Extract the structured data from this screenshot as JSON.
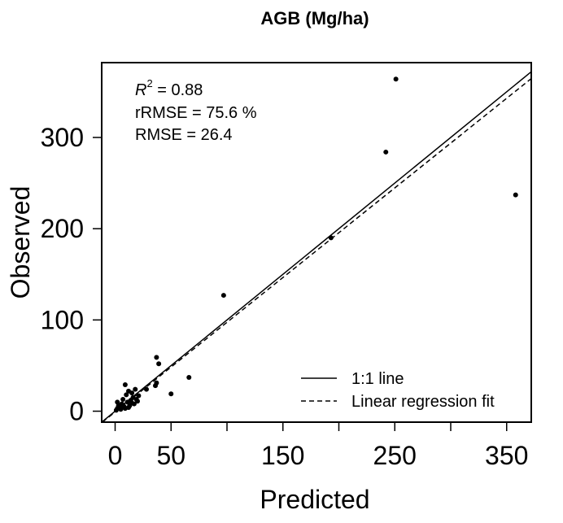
{
  "chart_data": {
    "type": "scatter",
    "title": "AGB (Mg/ha)",
    "xlabel": "Predicted",
    "ylabel": "Observed",
    "xlim": [
      -12,
      372
    ],
    "ylim": [
      -12,
      382
    ],
    "x_ticks": [
      0,
      50,
      100,
      150,
      200,
      250,
      300,
      350
    ],
    "x_tick_labels": [
      "0",
      "50",
      "",
      "150",
      "",
      "250",
      "",
      "350"
    ],
    "y_ticks": [
      0,
      100,
      200,
      300
    ],
    "y_tick_labels": [
      "0",
      "100",
      "200",
      "300"
    ],
    "stats": {
      "r2_symbol": "R",
      "r2_exponent": "2",
      "r2_text": " = 0.88",
      "rrmse_text": "rRMSE = 75.6 %",
      "rmse_text": "RMSE = 26.4"
    },
    "legend": {
      "position": "bottom-right",
      "entries": [
        {
          "label": "1:1 line",
          "style": "solid"
        },
        {
          "label": "Linear regression fit",
          "style": "dashed"
        }
      ]
    },
    "reference_line": {
      "slope": 1,
      "intercept": 0
    },
    "regression_line": {
      "slope": 0.982,
      "intercept": -0.8
    },
    "points": [
      {
        "x": 1,
        "y": 1
      },
      {
        "x": 2,
        "y": 3
      },
      {
        "x": 3,
        "y": 6
      },
      {
        "x": 2,
        "y": 10
      },
      {
        "x": 4,
        "y": 4
      },
      {
        "x": 5,
        "y": 2
      },
      {
        "x": 6,
        "y": 8
      },
      {
        "x": 7,
        "y": 13
      },
      {
        "x": 8,
        "y": 5
      },
      {
        "x": 9,
        "y": 29
      },
      {
        "x": 10,
        "y": 18
      },
      {
        "x": 11,
        "y": 10
      },
      {
        "x": 12,
        "y": 22
      },
      {
        "x": 13,
        "y": 6
      },
      {
        "x": 14,
        "y": 12
      },
      {
        "x": 15,
        "y": 20
      },
      {
        "x": 16,
        "y": 15
      },
      {
        "x": 17,
        "y": 8
      },
      {
        "x": 18,
        "y": 24
      },
      {
        "x": 19,
        "y": 13
      },
      {
        "x": 20,
        "y": 11
      },
      {
        "x": 21,
        "y": 17
      },
      {
        "x": 9,
        "y": 3
      },
      {
        "x": 12,
        "y": 4
      },
      {
        "x": 15,
        "y": 9
      },
      {
        "x": 28,
        "y": 24
      },
      {
        "x": 36,
        "y": 28
      },
      {
        "x": 37,
        "y": 31
      },
      {
        "x": 37,
        "y": 59
      },
      {
        "x": 39,
        "y": 52
      },
      {
        "x": 50,
        "y": 19
      },
      {
        "x": 66,
        "y": 37
      },
      {
        "x": 97,
        "y": 127
      },
      {
        "x": 193,
        "y": 190
      },
      {
        "x": 242,
        "y": 284
      },
      {
        "x": 251,
        "y": 364
      },
      {
        "x": 358,
        "y": 237
      }
    ]
  }
}
